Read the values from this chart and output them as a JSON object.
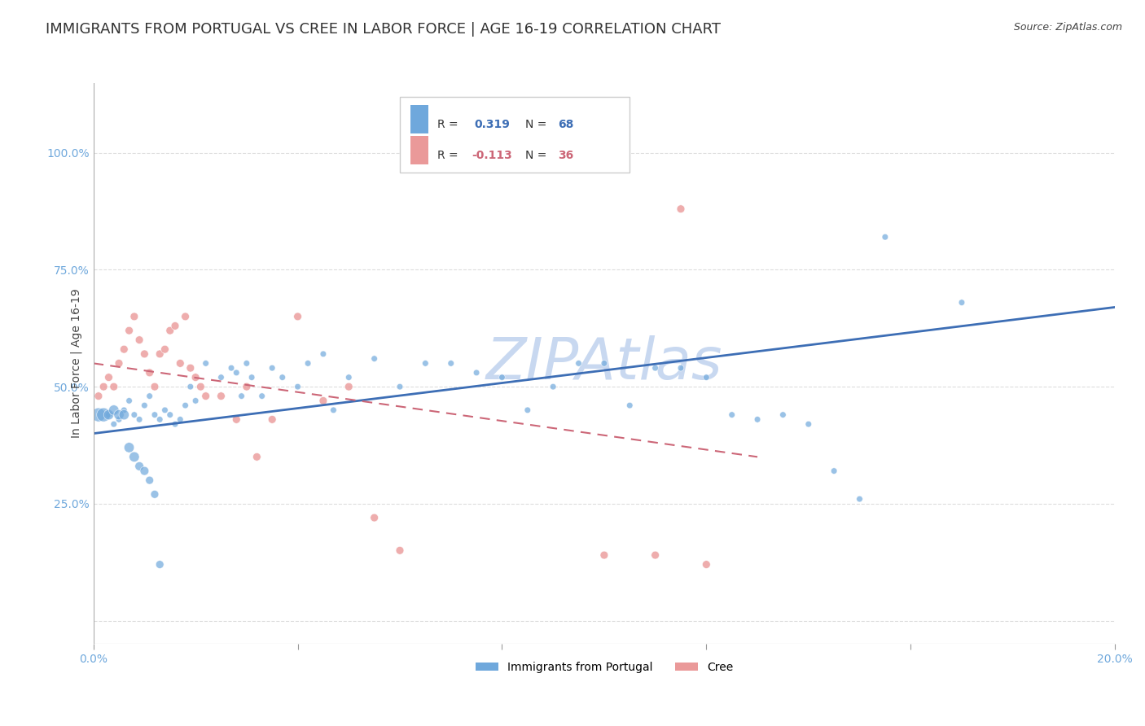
{
  "title": "IMMIGRANTS FROM PORTUGAL VS CREE IN LABOR FORCE | AGE 16-19 CORRELATION CHART",
  "source": "Source: ZipAtlas.com",
  "ylabel": "In Labor Force | Age 16-19",
  "xlim": [
    0.0,
    0.2
  ],
  "ylim": [
    -0.05,
    1.15
  ],
  "blue_color": "#6fa8dc",
  "pink_color": "#ea9999",
  "blue_line_color": "#3d6eb5",
  "pink_line_color": "#cc6677",
  "watermark_color": "#c8d8f0",
  "legend_R1": "R = ",
  "legend_V1": "0.319",
  "legend_N1_label": "N = ",
  "legend_N1_val": "68",
  "legend_R2": "R = ",
  "legend_V2": "-0.113",
  "legend_N2_label": "N = ",
  "legend_N2_val": "36",
  "blue_scatter_x": [
    0.003,
    0.004,
    0.005,
    0.006,
    0.007,
    0.008,
    0.009,
    0.01,
    0.011,
    0.012,
    0.013,
    0.014,
    0.015,
    0.016,
    0.017,
    0.018,
    0.019,
    0.02,
    0.022,
    0.025,
    0.027,
    0.028,
    0.029,
    0.03,
    0.031,
    0.033,
    0.035,
    0.037,
    0.04,
    0.042,
    0.045,
    0.047,
    0.05,
    0.055,
    0.06,
    0.065,
    0.07,
    0.075,
    0.08,
    0.085,
    0.09,
    0.095,
    0.1,
    0.105,
    0.11,
    0.115,
    0.12,
    0.125,
    0.13,
    0.135,
    0.14,
    0.145,
    0.15,
    0.001,
    0.002,
    0.003,
    0.004,
    0.005,
    0.006,
    0.007,
    0.008,
    0.009,
    0.01,
    0.011,
    0.012,
    0.013,
    0.155,
    0.17
  ],
  "blue_scatter_y": [
    0.44,
    0.42,
    0.43,
    0.45,
    0.47,
    0.44,
    0.43,
    0.46,
    0.48,
    0.44,
    0.43,
    0.45,
    0.44,
    0.42,
    0.43,
    0.46,
    0.5,
    0.47,
    0.55,
    0.52,
    0.54,
    0.53,
    0.48,
    0.55,
    0.52,
    0.48,
    0.54,
    0.52,
    0.5,
    0.55,
    0.57,
    0.45,
    0.52,
    0.56,
    0.5,
    0.55,
    0.55,
    0.53,
    0.52,
    0.45,
    0.5,
    0.55,
    0.55,
    0.46,
    0.54,
    0.54,
    0.52,
    0.44,
    0.43,
    0.44,
    0.42,
    0.32,
    0.26,
    0.44,
    0.44,
    0.44,
    0.45,
    0.44,
    0.44,
    0.37,
    0.35,
    0.33,
    0.32,
    0.3,
    0.27,
    0.12,
    0.82,
    0.68
  ],
  "blue_scatter_sizes": [
    30,
    30,
    30,
    30,
    30,
    30,
    30,
    30,
    30,
    30,
    30,
    30,
    30,
    30,
    30,
    30,
    30,
    30,
    30,
    30,
    30,
    30,
    30,
    30,
    30,
    30,
    30,
    30,
    30,
    30,
    30,
    30,
    30,
    30,
    30,
    30,
    30,
    30,
    30,
    30,
    30,
    30,
    30,
    30,
    30,
    30,
    30,
    30,
    30,
    30,
    30,
    30,
    30,
    150,
    150,
    80,
    80,
    80,
    80,
    80,
    80,
    60,
    60,
    50,
    50,
    50,
    30,
    30
  ],
  "pink_scatter_x": [
    0.001,
    0.002,
    0.003,
    0.004,
    0.005,
    0.006,
    0.007,
    0.008,
    0.009,
    0.01,
    0.011,
    0.012,
    0.013,
    0.014,
    0.015,
    0.016,
    0.017,
    0.018,
    0.019,
    0.02,
    0.021,
    0.022,
    0.025,
    0.028,
    0.03,
    0.032,
    0.035,
    0.04,
    0.045,
    0.05,
    0.055,
    0.06,
    0.1,
    0.11,
    0.115,
    0.12
  ],
  "pink_scatter_y": [
    0.48,
    0.5,
    0.52,
    0.5,
    0.55,
    0.58,
    0.62,
    0.65,
    0.6,
    0.57,
    0.53,
    0.5,
    0.57,
    0.58,
    0.62,
    0.63,
    0.55,
    0.65,
    0.54,
    0.52,
    0.5,
    0.48,
    0.48,
    0.43,
    0.5,
    0.35,
    0.43,
    0.65,
    0.47,
    0.5,
    0.22,
    0.15,
    0.14,
    0.14,
    0.88,
    0.12
  ],
  "pink_scatter_sizes": [
    50,
    50,
    50,
    50,
    50,
    50,
    50,
    50,
    50,
    50,
    50,
    50,
    50,
    50,
    50,
    50,
    50,
    50,
    50,
    50,
    50,
    50,
    50,
    50,
    50,
    50,
    50,
    50,
    50,
    50,
    50,
    50,
    50,
    50,
    50,
    50
  ],
  "blue_trend_x": [
    0.0,
    0.2
  ],
  "blue_trend_y": [
    0.4,
    0.67
  ],
  "pink_trend_x": [
    0.0,
    0.13
  ],
  "pink_trend_y": [
    0.55,
    0.35
  ],
  "background_color": "#ffffff",
  "grid_color": "#dddddd",
  "tick_color": "#6fa8dc",
  "title_color": "#333333",
  "title_fontsize": 13,
  "label_fontsize": 10,
  "tick_fontsize": 10
}
